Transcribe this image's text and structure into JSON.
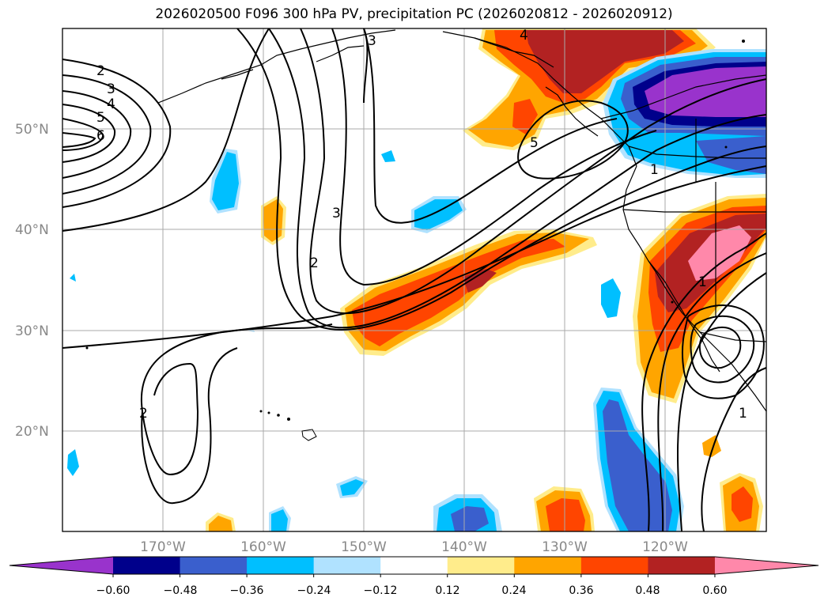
{
  "title": "2026020500 F096 300 hPa PV, precipitation PC (2026020812 - 2026020912)",
  "axes": {
    "lat_labels": [
      "50°N",
      "40°N",
      "30°N",
      "20°N"
    ],
    "lon_labels": [
      "170°W",
      "160°W",
      "150°W",
      "140°W",
      "130°W",
      "120°W"
    ]
  },
  "colorbar": {
    "ticks": [
      "−0.60",
      "−0.48",
      "−0.36",
      "−0.24",
      "−0.12",
      "0.12",
      "0.24",
      "0.36",
      "0.48",
      "0.60"
    ],
    "colors": [
      "#9933cc",
      "#00008b",
      "#3a5fcd",
      "#00bfff",
      "#b0e2ff",
      "#ffffff",
      "#ffec8b",
      "#ffa500",
      "#ff4500",
      "#b22222",
      "#ff88aa"
    ]
  },
  "pv_contour_labels": [
    "2",
    "3",
    "4",
    "5",
    "6",
    "3",
    "3",
    "2",
    "2",
    "5",
    "1",
    "1",
    "1",
    "4"
  ],
  "colors": {
    "contour": "#000000",
    "grid": "#aaaaaa",
    "axis_label": "#888888"
  }
}
